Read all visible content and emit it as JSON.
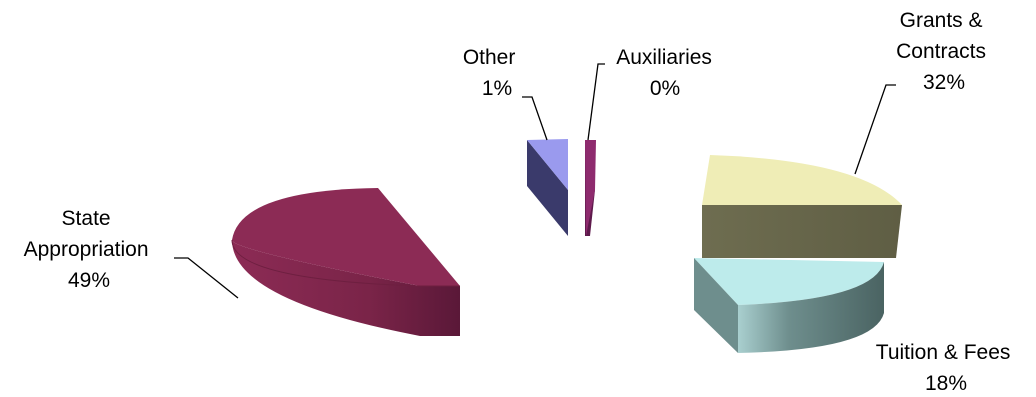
{
  "chart_data": {
    "type": "pie",
    "title": "",
    "style": "3d-exploded",
    "slices": [
      {
        "key": "grants",
        "label_lines": [
          "Grants &",
          "Contracts"
        ],
        "percent_label": "32%",
        "value": 32,
        "top_color": "#EFEDB6",
        "side_color": "#6B6A4E"
      },
      {
        "key": "tuition",
        "label_lines": [
          "Tuition & Fees"
        ],
        "percent_label": "18%",
        "value": 18,
        "top_color": "#BDEBEB",
        "side_color": "#4E6766"
      },
      {
        "key": "state",
        "label_lines": [
          "State",
          "Appropriation"
        ],
        "percent_label": "49%",
        "value": 49,
        "top_color": "#8C2B55",
        "side_color": "#7A2448"
      },
      {
        "key": "other",
        "label_lines": [
          "Other"
        ],
        "percent_label": "1%",
        "value": 1,
        "top_color": "#9A9AEE",
        "side_color": "#3A3A6B"
      },
      {
        "key": "aux",
        "label_lines": [
          "Auxiliaries"
        ],
        "percent_label": "0%",
        "value": 0,
        "top_color": "#8E2B6E",
        "side_color": "#5E1A4C"
      }
    ]
  }
}
